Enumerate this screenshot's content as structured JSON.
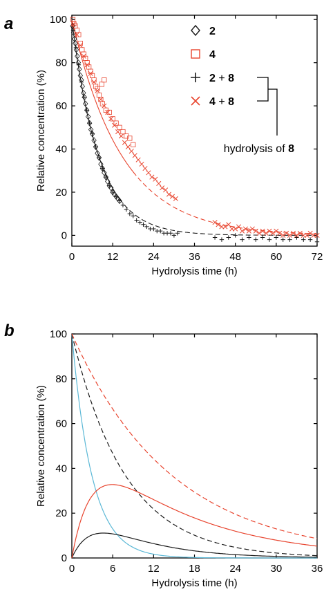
{
  "colors": {
    "black": "#1a1a1a",
    "red": "#e8442e",
    "blue": "#5bb8d6",
    "frame": "#000000"
  },
  "chart_data": [
    {
      "panel": "a",
      "type": "scatter",
      "xlabel": "Hydrolysis time (h)",
      "ylabel": "Relative concentration (%)",
      "xlim": [
        0,
        72
      ],
      "ylim": [
        -5,
        102
      ],
      "xticks": [
        "0",
        "12",
        "24",
        "36",
        "48",
        "60",
        "72"
      ],
      "yticks": [
        "0",
        "20",
        "40",
        "60",
        "80",
        "100"
      ],
      "legend": {
        "position": "top-right",
        "entries": [
          {
            "marker": "diamond",
            "color": "black",
            "text": "",
            "bold": "2"
          },
          {
            "marker": "square",
            "color": "red",
            "text": "",
            "bold": "4"
          },
          {
            "marker": "plus",
            "color": "black",
            "text": "2 + 8",
            "bold": ""
          },
          {
            "marker": "cross",
            "color": "red",
            "text": "4 + 8",
            "bold": ""
          }
        ],
        "bracket_text": "hydrolysis of ",
        "bracket_bold": "8"
      },
      "series": [
        {
          "marker": "diamond",
          "color": "black",
          "points": [
            [
              0.2,
              97
            ],
            [
              0.5,
              94
            ],
            [
              0.8,
              91
            ],
            [
              1.0,
              89
            ],
            [
              1.3,
              86
            ],
            [
              1.6,
              83
            ],
            [
              1.9,
              80
            ],
            [
              2.2,
              77
            ],
            [
              2.5,
              74
            ],
            [
              2.8,
              72
            ],
            [
              3.1,
              69
            ],
            [
              3.4,
              66
            ],
            [
              3.7,
              64
            ],
            [
              4.0,
              61
            ],
            [
              4.4,
              58
            ],
            [
              4.8,
              55
            ],
            [
              5.2,
              52
            ],
            [
              5.6,
              49
            ],
            [
              6.0,
              47
            ],
            [
              6.5,
              44
            ],
            [
              7.0,
              41
            ],
            [
              7.5,
              38
            ],
            [
              8.0,
              36
            ],
            [
              8.5,
              33
            ],
            [
              9.0,
              31
            ],
            [
              9.5,
              29
            ],
            [
              10.0,
              27
            ],
            [
              10.5,
              25
            ],
            [
              11.0,
              23
            ],
            [
              11.5,
              22
            ],
            [
              12.0,
              20
            ],
            [
              12.5,
              19
            ],
            [
              13.0,
              18
            ],
            [
              13.5,
              17
            ],
            [
              14.0,
              16
            ]
          ]
        },
        {
          "marker": "square",
          "color": "red",
          "points": [
            [
              0.3,
              100
            ],
            [
              0.6,
              98
            ],
            [
              1.0,
              97
            ],
            [
              1.5,
              95
            ],
            [
              2.0,
              93
            ],
            [
              2.5,
              89
            ],
            [
              3.0,
              86
            ],
            [
              3.5,
              84
            ],
            [
              4.0,
              82
            ],
            [
              4.5,
              80
            ],
            [
              5.0,
              78
            ],
            [
              5.5,
              76
            ],
            [
              6.0,
              74
            ],
            [
              6.5,
              72
            ],
            [
              7.0,
              69
            ],
            [
              7.5,
              68
            ],
            [
              8.0,
              65
            ],
            [
              8.5,
              63
            ],
            [
              9.0,
              61
            ],
            [
              10.0,
              58
            ],
            [
              11.0,
              57
            ],
            [
              12.0,
              54
            ],
            [
              13.0,
              52
            ],
            [
              14.0,
              50
            ],
            [
              15.0,
              48
            ],
            [
              16.0,
              46
            ],
            [
              17.0,
              45
            ],
            [
              18.0,
              42
            ],
            [
              9.5,
              72
            ],
            [
              8.8,
              70
            ]
          ]
        },
        {
          "marker": "plus",
          "color": "black",
          "points": [
            [
              0.4,
              95
            ],
            [
              1.2,
              87
            ],
            [
              2.0,
              79
            ],
            [
              2.8,
              71
            ],
            [
              3.6,
              64
            ],
            [
              4.4,
              58
            ],
            [
              5.2,
              52
            ],
            [
              6.0,
              47
            ],
            [
              7.0,
              41
            ],
            [
              8.0,
              36
            ],
            [
              9.0,
              31
            ],
            [
              10.0,
              27
            ],
            [
              11.0,
              23
            ],
            [
              12.0,
              20
            ],
            [
              13.0,
              18
            ],
            [
              14.0,
              16
            ],
            [
              15.0,
              14
            ],
            [
              16.0,
              12
            ],
            [
              17.0,
              10
            ],
            [
              18.0,
              9
            ],
            [
              19.0,
              7
            ],
            [
              20.0,
              6
            ],
            [
              21.0,
              5
            ],
            [
              22.0,
              4
            ],
            [
              23.0,
              3
            ],
            [
              24.0,
              3
            ],
            [
              25.0,
              2
            ],
            [
              26.0,
              2
            ],
            [
              27.0,
              1
            ],
            [
              28.0,
              1
            ],
            [
              29.0,
              1
            ],
            [
              30.0,
              0
            ],
            [
              31.0,
              1
            ],
            [
              42.0,
              -1
            ],
            [
              44.0,
              -2
            ],
            [
              46.0,
              -1
            ],
            [
              48.0,
              0
            ],
            [
              50.0,
              -2
            ],
            [
              52.0,
              -1
            ],
            [
              54.0,
              -2
            ],
            [
              56.0,
              -1
            ],
            [
              58.0,
              -2
            ],
            [
              60.0,
              -1
            ],
            [
              62.0,
              -2
            ],
            [
              64.0,
              -2
            ],
            [
              66.0,
              -1
            ],
            [
              68.0,
              -2
            ],
            [
              70.0,
              -2
            ],
            [
              72.0,
              -3
            ]
          ]
        },
        {
          "marker": "cross",
          "color": "red",
          "points": [
            [
              0.5,
              98
            ],
            [
              1.5,
              93
            ],
            [
              2.5,
              88
            ],
            [
              3.5,
              83
            ],
            [
              4.5,
              79
            ],
            [
              5.5,
              75
            ],
            [
              6.5,
              71
            ],
            [
              7.5,
              67
            ],
            [
              8.5,
              63
            ],
            [
              9.5,
              60
            ],
            [
              10.5,
              57
            ],
            [
              11.5,
              54
            ],
            [
              12.5,
              51
            ],
            [
              13.5,
              48
            ],
            [
              14.5,
              46
            ],
            [
              15.5,
              43
            ],
            [
              16.5,
              41
            ],
            [
              17.5,
              39
            ],
            [
              18.5,
              37
            ],
            [
              19.5,
              35
            ],
            [
              20.5,
              33
            ],
            [
              21.5,
              31
            ],
            [
              22.5,
              29
            ],
            [
              23.5,
              27
            ],
            [
              24.5,
              26
            ],
            [
              25.5,
              24
            ],
            [
              26.5,
              22
            ],
            [
              27.5,
              21
            ],
            [
              28.5,
              19
            ],
            [
              29.5,
              18
            ],
            [
              30.5,
              17
            ],
            [
              42.0,
              6
            ],
            [
              43.0,
              5
            ],
            [
              44.0,
              4
            ],
            [
              45.0,
              4
            ],
            [
              46.0,
              5
            ],
            [
              47.0,
              3
            ],
            [
              48.0,
              3
            ],
            [
              49.0,
              4
            ],
            [
              50.0,
              2
            ],
            [
              51.0,
              3
            ],
            [
              52.0,
              2
            ],
            [
              53.0,
              3
            ],
            [
              54.0,
              2
            ],
            [
              55.0,
              1
            ],
            [
              56.0,
              2
            ],
            [
              57.0,
              1
            ],
            [
              58.0,
              2
            ],
            [
              59.0,
              1
            ],
            [
              60.0,
              2
            ],
            [
              61.0,
              1
            ],
            [
              62.0,
              0
            ],
            [
              63.0,
              1
            ],
            [
              64.0,
              0
            ],
            [
              65.0,
              1
            ],
            [
              66.0,
              0
            ],
            [
              67.0,
              1
            ],
            [
              68.0,
              0
            ],
            [
              69.0,
              0
            ],
            [
              70.0,
              1
            ],
            [
              71.0,
              0
            ],
            [
              72.0,
              0
            ]
          ]
        }
      ],
      "fits": [
        {
          "color": "black",
          "style": "solid",
          "k": 0.127,
          "x_range": [
            0,
            14
          ]
        },
        {
          "color": "black",
          "style": "dashed",
          "k": 0.127,
          "x_range": [
            14,
            72
          ]
        },
        {
          "color": "red",
          "style": "solid",
          "k": 0.068,
          "x_range": [
            0,
            18
          ]
        },
        {
          "color": "red",
          "style": "dashed",
          "k": 0.068,
          "x_range": [
            18,
            72
          ]
        }
      ]
    },
    {
      "panel": "b",
      "type": "line",
      "xlabel": "Hydrolysis time (h)",
      "ylabel": "Relative concentration (%)",
      "xlim": [
        0,
        36
      ],
      "ylim": [
        0,
        100
      ],
      "xticks": [
        "0",
        "6",
        "12",
        "18",
        "24",
        "30",
        "36"
      ],
      "yticks": [
        "0",
        "20",
        "40",
        "60",
        "80",
        "100"
      ],
      "series": [
        {
          "color": "blue",
          "style": "solid",
          "model": "decay",
          "k1": 0.34
        },
        {
          "color": "black",
          "style": "dashed",
          "model": "decay",
          "k1": 0.127
        },
        {
          "color": "red",
          "style": "dashed",
          "model": "decay",
          "k1": 0.068
        },
        {
          "color": "black",
          "style": "solid",
          "model": "intermediate",
          "k1": 0.34,
          "k2": 0.127,
          "scale": 0.2
        },
        {
          "color": "red",
          "style": "solid",
          "model": "intermediate",
          "k1": 0.34,
          "k2": 0.068,
          "scale": 0.49
        }
      ]
    }
  ]
}
